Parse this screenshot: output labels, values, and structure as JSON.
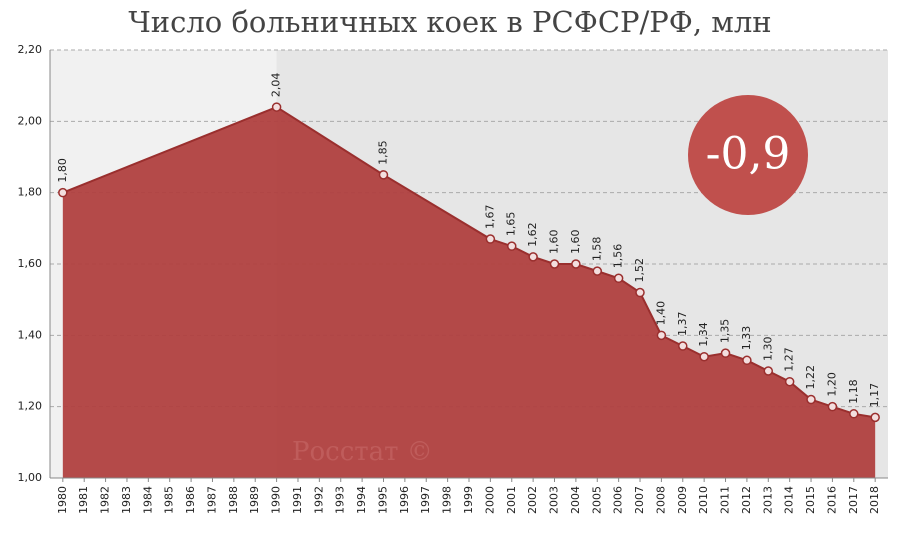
{
  "chart_data": {
    "type": "area",
    "title": "Число больничных коек в РСФСР/РФ, млн",
    "annotation": "-0,9",
    "source": "Росстат ©",
    "x": [
      1980,
      1990,
      1995,
      2000,
      2001,
      2002,
      2003,
      2004,
      2005,
      2006,
      2007,
      2008,
      2009,
      2010,
      2011,
      2012,
      2013,
      2014,
      2015,
      2016,
      2017,
      2018
    ],
    "values": [
      1.8,
      2.04,
      1.85,
      1.67,
      1.65,
      1.62,
      1.6,
      1.6,
      1.58,
      1.56,
      1.52,
      1.4,
      1.37,
      1.34,
      1.35,
      1.33,
      1.3,
      1.27,
      1.22,
      1.2,
      1.18,
      1.17
    ],
    "value_labels": [
      "1,80",
      "2,04",
      "1,85",
      "1,67",
      "1,65",
      "1,62",
      "1,60",
      "1,60",
      "1,58",
      "1,56",
      "1,52",
      "1,40",
      "1,37",
      "1,34",
      "1,35",
      "1,33",
      "1,30",
      "1,27",
      "1,22",
      "1,20",
      "1,18",
      "1,17"
    ],
    "color": "#b0403f",
    "xlim": [
      1979.4,
      2018.6
    ],
    "xticks": [
      1980,
      1981,
      1982,
      1983,
      1984,
      1985,
      1986,
      1987,
      1988,
      1989,
      1990,
      1991,
      1992,
      1993,
      1994,
      1995,
      1996,
      1997,
      1998,
      1999,
      2000,
      2001,
      2002,
      2003,
      2004,
      2005,
      2006,
      2007,
      2008,
      2009,
      2010,
      2011,
      2012,
      2013,
      2014,
      2015,
      2016,
      2017,
      2018
    ],
    "ylim": [
      1.0,
      2.2
    ],
    "yticks": [
      {
        "value": 1.0,
        "label": "1,00"
      },
      {
        "value": 1.2,
        "label": "1,20"
      },
      {
        "value": 1.4,
        "label": "1,40"
      },
      {
        "value": 1.6,
        "label": "1,60"
      },
      {
        "value": 1.8,
        "label": "1,80"
      },
      {
        "value": 2.0,
        "label": "2,00"
      },
      {
        "value": 2.2,
        "label": "2,20"
      }
    ],
    "grid": true
  }
}
